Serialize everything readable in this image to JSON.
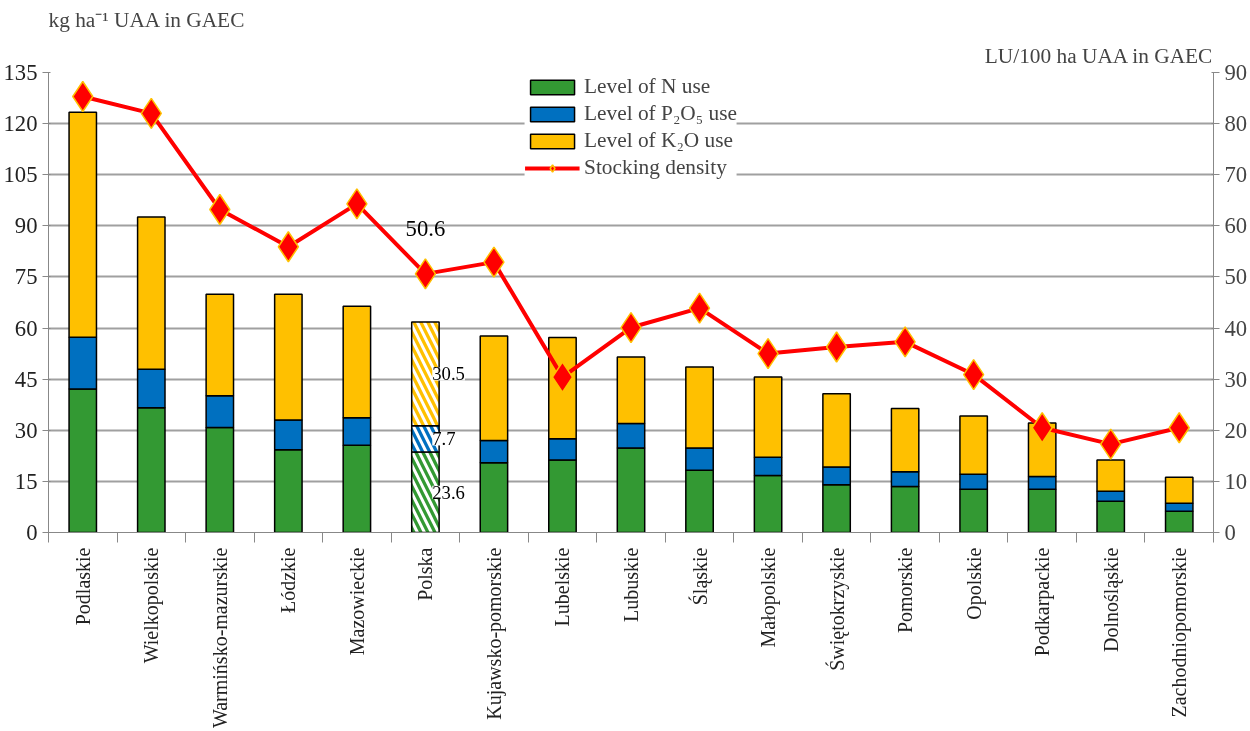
{
  "chart_data": {
    "type": "bar",
    "stacked": true,
    "ylabel": "kg ha⁻¹ UAA in GAEC",
    "y2label": "LU/100 ha UAA in GAEC",
    "categories": [
      "Podlaskie",
      "Wielkopolskie",
      "Warmińsko-mazurskie",
      "Łódzkie",
      "Mazowieckie",
      "Polska",
      "Kujawsko-pomorskie",
      "Lubelskie",
      "Lubuskie",
      "Śląskie",
      "Małopolskie",
      "Świętokrzyskie",
      "Pomorskie",
      "Opolskie",
      "Podkarpackie",
      "Dolnośląskie",
      "Zachodniopomorskie"
    ],
    "series": [
      {
        "name": "Level of N use",
        "color": "#339933",
        "values": [
          42.1,
          36.6,
          30.8,
          24.3,
          25.6,
          23.6,
          20.5,
          21.3,
          24.8,
          18.3,
          16.7,
          14.0,
          13.5,
          12.7,
          12.7,
          9.2,
          6.2
        ],
        "value_labels": [
          null,
          null,
          null,
          null,
          null,
          "23.6",
          null,
          null,
          null,
          null,
          null,
          null,
          null,
          null,
          null,
          null,
          null
        ]
      },
      {
        "name": "Level of P₂O₅ use",
        "color": "#0070c0",
        "values": [
          15.2,
          11.3,
          9.3,
          8.7,
          8.1,
          7.7,
          6.5,
          6.2,
          7.2,
          6.5,
          5.4,
          5.2,
          4.3,
          4.4,
          3.7,
          2.9,
          2.4
        ],
        "value_labels": [
          null,
          null,
          null,
          null,
          null,
          "7.7",
          null,
          null,
          null,
          null,
          null,
          null,
          null,
          null,
          null,
          null,
          null
        ]
      },
      {
        "name": "Level of K₂O use",
        "color": "#ffc000",
        "values": [
          66.0,
          44.7,
          29.8,
          36.9,
          32.7,
          30.5,
          30.7,
          29.7,
          19.5,
          23.8,
          23.5,
          21.5,
          18.6,
          17.1,
          15.7,
          9.2,
          7.6
        ],
        "value_labels": [
          null,
          null,
          null,
          null,
          null,
          "30.5",
          null,
          null,
          null,
          null,
          null,
          null,
          null,
          null,
          null,
          null,
          null
        ]
      },
      {
        "name": "Stocking density",
        "type": "line",
        "axis": "y2",
        "color": "#ff0000",
        "marker": "diamond",
        "values": [
          85.3,
          82.0,
          63.2,
          55.9,
          64.3,
          50.6,
          52.9,
          30.4,
          40.1,
          43.9,
          35.0,
          36.3,
          37.3,
          30.9,
          20.5,
          17.3,
          20.5
        ],
        "value_labels": [
          null,
          null,
          null,
          null,
          null,
          "50.6",
          null,
          null,
          null,
          null,
          null,
          null,
          null,
          null,
          null,
          null,
          null
        ]
      }
    ],
    "ylim": [
      0,
      135
    ],
    "yticks": [
      0,
      15,
      30,
      45,
      60,
      75,
      90,
      105,
      120,
      135
    ],
    "y2lim": [
      0,
      90
    ],
    "y2ticks": [
      0,
      10,
      20,
      30,
      40,
      50,
      60,
      70,
      80,
      90
    ],
    "grid": "y",
    "legend": "top"
  }
}
